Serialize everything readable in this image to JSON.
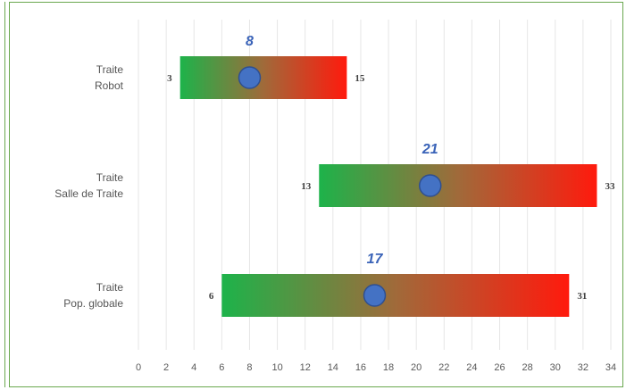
{
  "chart_data": {
    "type": "bar",
    "orientation": "horizontal-range",
    "categories": [
      [
        "Traite",
        "Robot"
      ],
      [
        "Traite",
        "Salle de Traite"
      ],
      [
        "Traite",
        "Pop. globale"
      ]
    ],
    "ranges": [
      {
        "min": 3,
        "max": 15,
        "point": 8
      },
      {
        "min": 13,
        "max": 33,
        "point": 21
      },
      {
        "min": 6,
        "max": 31,
        "point": 17
      }
    ],
    "min_labels": [
      "3",
      "13",
      "6"
    ],
    "max_labels": [
      "15",
      "33",
      "31"
    ],
    "point_labels": [
      "8",
      "21",
      "17"
    ],
    "xlim": [
      0,
      34
    ],
    "xticks": [
      0,
      2,
      4,
      6,
      8,
      10,
      12,
      14,
      16,
      18,
      20,
      22,
      24,
      26,
      28,
      30,
      32,
      34
    ],
    "grid": "vertical",
    "colors": {
      "bar_low": "#1db34a",
      "bar_high": "#ff1a0d",
      "marker": "#4472c4",
      "marker_edge": "#2f4f8f",
      "point_label": "#3a63b8",
      "frame": "#6aa84f"
    }
  }
}
